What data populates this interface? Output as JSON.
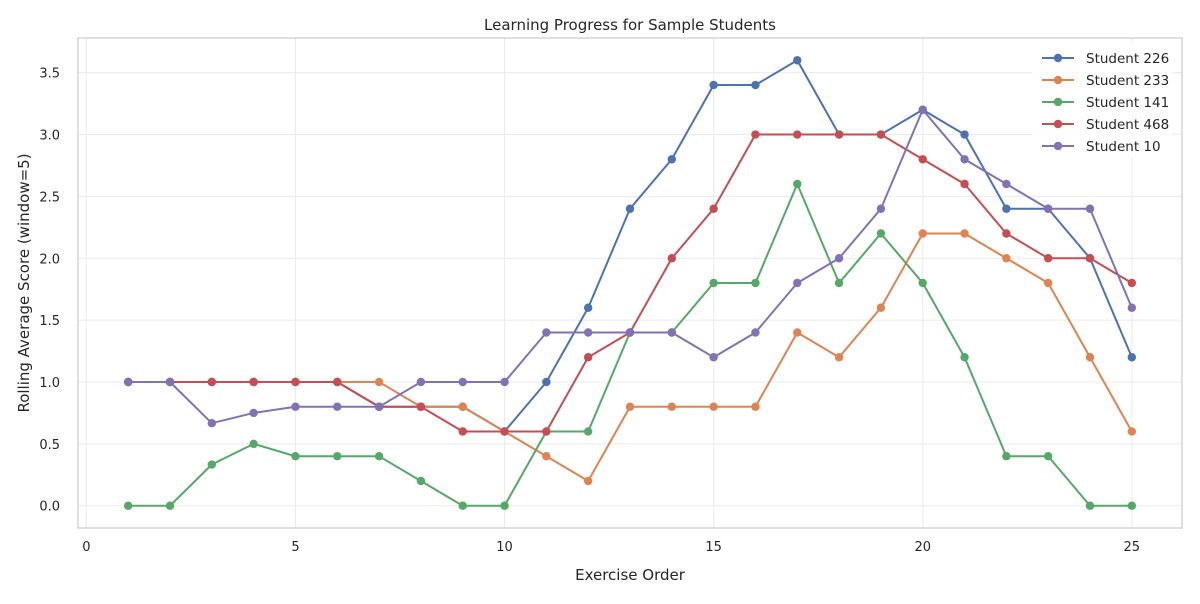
{
  "chart_data": {
    "type": "line",
    "title": "Learning Progress for Sample Students",
    "xlabel": "Exercise Order",
    "ylabel": "Rolling Average Score (window=5)",
    "xlim": [
      -0.2,
      26.2
    ],
    "ylim": [
      -0.18,
      3.78
    ],
    "xticks": [
      0,
      5,
      10,
      15,
      20,
      25
    ],
    "yticks": [
      0.0,
      0.5,
      1.0,
      1.5,
      2.0,
      2.5,
      3.0,
      3.5
    ],
    "ytick_labels": [
      "0.0",
      "0.5",
      "1.0",
      "1.5",
      "2.0",
      "2.5",
      "3.0",
      "3.5"
    ],
    "grid": true,
    "legend_position": "top-right",
    "x": [
      1,
      2,
      3,
      4,
      5,
      6,
      7,
      8,
      9,
      10,
      11,
      12,
      13,
      14,
      15,
      16,
      17,
      18,
      19,
      20,
      21,
      22,
      23,
      24,
      25
    ],
    "series": [
      {
        "name": "Student 226",
        "color": "#4c72b0",
        "values": [
          1.0,
          1.0,
          1.0,
          1.0,
          1.0,
          1.0,
          0.8,
          0.8,
          0.8,
          0.6,
          1.0,
          1.6,
          2.4,
          2.8,
          3.4,
          3.4,
          3.6,
          3.0,
          3.0,
          3.2,
          3.0,
          2.4,
          2.4,
          2.0,
          1.2
        ]
      },
      {
        "name": "Student 233",
        "color": "#dd8452",
        "values": [
          1.0,
          1.0,
          1.0,
          1.0,
          1.0,
          1.0,
          1.0,
          0.8,
          0.8,
          0.6,
          0.4,
          0.2,
          0.8,
          0.8,
          0.8,
          0.8,
          1.4,
          1.2,
          1.6,
          2.2,
          2.2,
          2.0,
          1.8,
          1.2,
          0.6
        ]
      },
      {
        "name": "Student 141",
        "color": "#55a868",
        "values": [
          0.0,
          0.0,
          0.333,
          0.5,
          0.4,
          0.4,
          0.4,
          0.2,
          0.0,
          0.0,
          0.6,
          0.6,
          1.4,
          1.4,
          1.8,
          1.8,
          2.6,
          1.8,
          2.2,
          1.8,
          1.2,
          0.4,
          0.4,
          0.0,
          0.0
        ]
      },
      {
        "name": "Student 468",
        "color": "#c44e52",
        "values": [
          1.0,
          1.0,
          1.0,
          1.0,
          1.0,
          1.0,
          0.8,
          0.8,
          0.6,
          0.6,
          0.6,
          1.2,
          1.4,
          2.0,
          2.4,
          3.0,
          3.0,
          3.0,
          3.0,
          2.8,
          2.6,
          2.2,
          2.0,
          2.0,
          1.8
        ]
      },
      {
        "name": "Student 10",
        "color": "#8172b3",
        "values": [
          1.0,
          1.0,
          0.667,
          0.75,
          0.8,
          0.8,
          0.8,
          1.0,
          1.0,
          1.0,
          1.4,
          1.4,
          1.4,
          1.4,
          1.2,
          1.4,
          1.8,
          2.0,
          2.4,
          3.2,
          2.8,
          2.6,
          2.4,
          2.4,
          1.6
        ]
      }
    ]
  }
}
